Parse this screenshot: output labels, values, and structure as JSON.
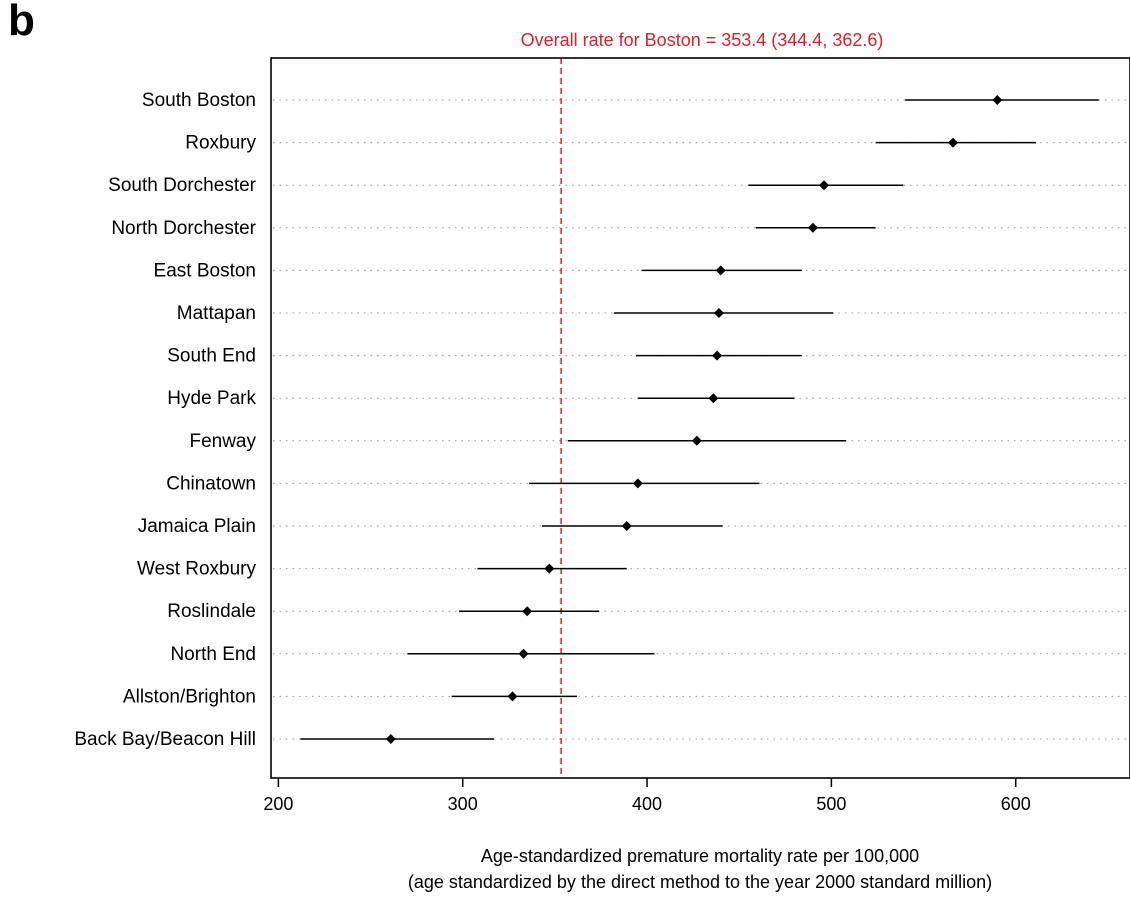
{
  "panel_letter": "b",
  "chart_data": {
    "type": "forest",
    "reference_label": "Overall rate for Boston = 353.4 (344.4, 362.6)",
    "reference_value": 353.4,
    "reference_ci": [
      344.4,
      362.6
    ],
    "reference_color": "#e0202a",
    "xlabel_line1": "Age-standardized premature mortality rate per 100,000",
    "xlabel_line2": "(age standardized by the direct method to the year 2000 standard million)",
    "xlim": [
      196,
      662
    ],
    "xticks": [
      200,
      300,
      400,
      500,
      600
    ],
    "grid": "horizontal dotted",
    "categories": [
      "South Boston",
      "Roxbury",
      "South Dorchester",
      "North Dorchester",
      "East Boston",
      "Mattapan",
      "South End",
      "Hyde Park",
      "Fenway",
      "Chinatown",
      "Jamaica Plain",
      "West Roxbury",
      "Roslindale",
      "North End",
      "Allston/Brighton",
      "Back Bay/Beacon Hill"
    ],
    "estimates": [
      590,
      566,
      496,
      490,
      440,
      439,
      438,
      436,
      427,
      395,
      389,
      347,
      335,
      333,
      327,
      261
    ],
    "ci_lower": [
      540,
      524,
      455,
      459,
      397,
      382,
      394,
      395,
      357,
      336,
      343,
      308,
      298,
      270,
      294,
      212
    ],
    "ci_upper": [
      645,
      611,
      539,
      524,
      484,
      501,
      484,
      480,
      508,
      461,
      441,
      389,
      374,
      404,
      362,
      317
    ]
  }
}
